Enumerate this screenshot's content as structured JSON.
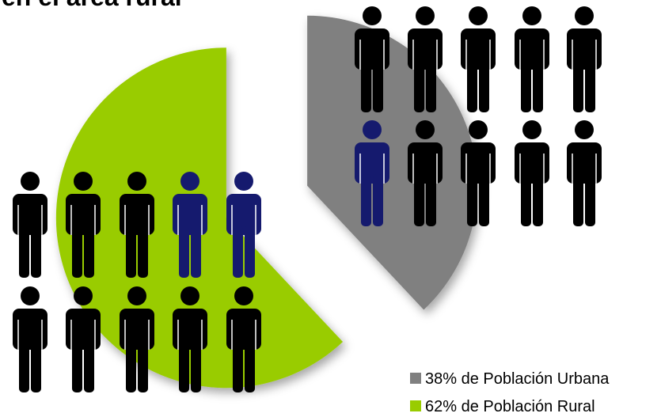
{
  "chart_data": {
    "type": "pie",
    "title": "en el área rural",
    "categories": [
      "38% de Población Urbana",
      "62% de Población Rural"
    ],
    "values": [
      38,
      62
    ],
    "colors": [
      "#808080",
      "#99cc00"
    ],
    "legend": "bottom-right"
  }
}
